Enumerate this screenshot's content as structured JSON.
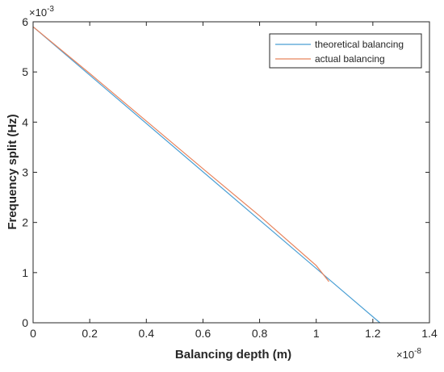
{
  "chart_data": {
    "type": "line",
    "title": "",
    "xlabel": "Balancing depth (m)",
    "ylabel": "Frequency split (Hz)",
    "x_multiplier_label": "×10",
    "x_multiplier_exp": "-8",
    "y_multiplier_label": "×10",
    "y_multiplier_exp": "-3",
    "xlim": [
      0,
      1.4
    ],
    "ylim": [
      0,
      6
    ],
    "xticks": [
      0,
      0.2,
      0.4,
      0.6,
      0.8,
      1,
      1.2,
      1.4
    ],
    "xtick_labels": [
      "0",
      "0.2",
      "0.4",
      "0.6",
      "0.8",
      "1",
      "1.2",
      "1.4"
    ],
    "yticks": [
      0,
      1,
      2,
      3,
      4,
      5,
      6
    ],
    "ytick_labels": [
      "0",
      "1",
      "2",
      "3",
      "4",
      "5",
      "6"
    ],
    "grid": false,
    "legend_position": "top-right",
    "series": [
      {
        "name": "theoretical balancing",
        "color": "#4a9fd4",
        "x": [
          0,
          1.225
        ],
        "y": [
          5.9,
          0
        ]
      },
      {
        "name": "actual balancing",
        "color": "#e8835c",
        "x": [
          0,
          0.2,
          0.4,
          0.6,
          0.8,
          1.0,
          1.045
        ],
        "y": [
          5.9,
          4.97,
          4.02,
          3.07,
          2.13,
          1.14,
          0.82
        ]
      }
    ]
  }
}
